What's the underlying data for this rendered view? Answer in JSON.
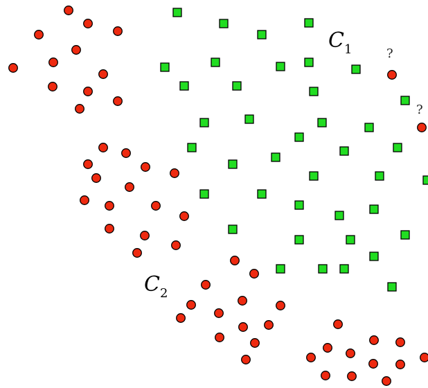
{
  "labels": {
    "cluster1_main": "C",
    "cluster1_sub": "1",
    "cluster2_main": "C",
    "cluster2_sub": "2",
    "question_mark": "?"
  },
  "colors": {
    "red_point": "#ee2a10",
    "green_point": "#22dd22",
    "outline": "#000000"
  },
  "legend": {
    "red_marker": "circle",
    "green_marker": "square"
  }
}
